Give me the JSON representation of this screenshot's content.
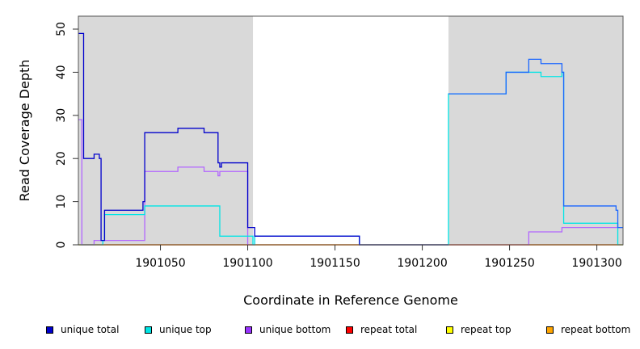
{
  "chart_data": {
    "type": "line",
    "title": "",
    "xlabel": "Coordinate in Reference Genome",
    "ylabel": "Read Coverage Depth",
    "xlim": [
      1901003,
      1901315
    ],
    "ylim": [
      0,
      53
    ],
    "x_ticks": [
      1901050,
      1901100,
      1901150,
      1901200,
      1901250,
      1901300
    ],
    "x_tick_labels": [
      "1901050",
      "1901100",
      "1901150",
      "1901200",
      "1901250",
      "1901300"
    ],
    "y_ticks": [
      0,
      10,
      20,
      30,
      40,
      50
    ],
    "y_tick_labels": [
      "0",
      "10",
      "20",
      "30",
      "40",
      "50"
    ],
    "grid": false,
    "shaded_regions": [
      {
        "x": [
          1901003,
          1901103
        ],
        "color": "#d9d9d9"
      },
      {
        "x": [
          1901215,
          1901315
        ],
        "color": "#d9d9d9"
      }
    ],
    "legend_position": "bottom",
    "series": [
      {
        "name": "unique total",
        "color": "#0000cc",
        "step": true,
        "x": [
          1901003,
          1901006,
          1901012,
          1901015,
          1901016,
          1901017,
          1901018,
          1901040,
          1901041,
          1901060,
          1901075,
          1901083,
          1901084,
          1901085,
          1901100,
          1901104,
          1901164,
          1901215
        ],
        "y": [
          49,
          20,
          21,
          20,
          1,
          1,
          8,
          10,
          26,
          27,
          26,
          19,
          18,
          19,
          4,
          2,
          0,
          0
        ]
      },
      {
        "name": "unique top",
        "color": "#00e5e5",
        "step": true,
        "x": [
          1901003,
          1901005,
          1901017,
          1901018,
          1901040,
          1901041,
          1901075,
          1901084,
          1901103,
          1901104,
          1901164,
          1901215,
          1901248,
          1901268,
          1901280,
          1901281,
          1901312,
          1901315
        ],
        "y": [
          0,
          0,
          1,
          7,
          7,
          9,
          9,
          2,
          0,
          2,
          0,
          35,
          40,
          39,
          40,
          5,
          0,
          0
        ]
      },
      {
        "name": "unique bottom",
        "color": "#b266ff",
        "step": true,
        "x": [
          1901003,
          1901005,
          1901012,
          1901041,
          1901060,
          1901075,
          1901083,
          1901084,
          1901085,
          1901100,
          1901104,
          1901164,
          1901261,
          1901280,
          1901315
        ],
        "y": [
          29,
          0,
          1,
          17,
          18,
          17,
          16,
          17,
          17,
          0,
          2,
          0,
          3,
          4,
          4
        ]
      },
      {
        "name": "repeat total",
        "color": "#ff0000",
        "step": true,
        "x": [
          1901003,
          1901315
        ],
        "y": [
          0,
          0
        ]
      },
      {
        "name": "repeat top",
        "color": "#ffff00",
        "step": true,
        "x": [
          1901003,
          1901315
        ],
        "y": [
          0,
          0
        ]
      },
      {
        "name": "repeat bottom",
        "color": "#ffa500",
        "step": true,
        "x": [
          1901003,
          1901315
        ],
        "y": [
          0,
          0
        ]
      }
    ],
    "overlay_series": [
      {
        "color": "#1a66ff",
        "step": true,
        "x": [
          1901215,
          1901248,
          1901261,
          1901268,
          1901280,
          1901281,
          1901311,
          1901312,
          1901315
        ],
        "y": [
          35,
          40,
          43,
          42,
          40,
          9,
          8,
          4,
          4
        ]
      }
    ]
  }
}
